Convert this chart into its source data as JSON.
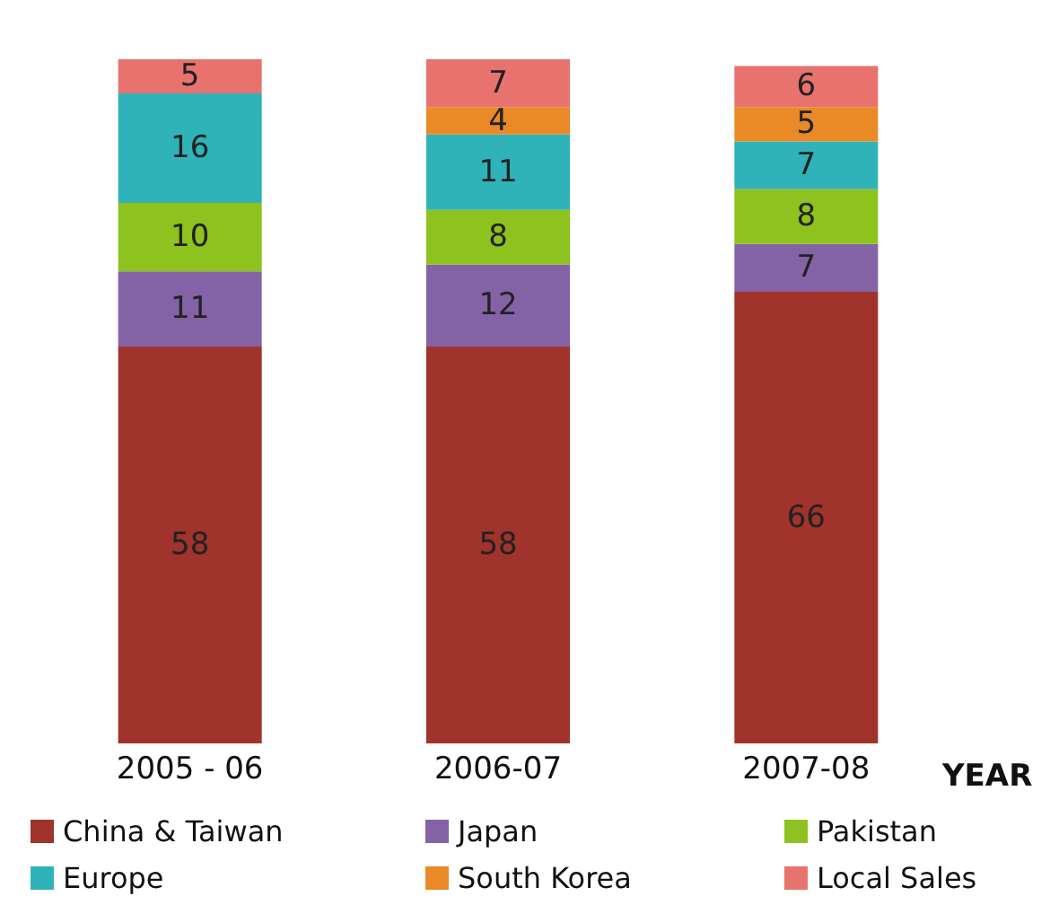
{
  "chart_data": {
    "type": "bar",
    "stacked": true,
    "data_labels": true,
    "legend": "bottom",
    "xlabel": "YEAR",
    "categories": [
      "2005 - 06",
      "2006-07",
      "2007-08"
    ],
    "series": [
      {
        "name": "China & Taiwan",
        "color": "#a0332b",
        "values": [
          58,
          58,
          66
        ]
      },
      {
        "name": "Japan",
        "color": "#8462a6",
        "values": [
          11,
          12,
          7
        ]
      },
      {
        "name": "Pakistan",
        "color": "#8dc21f",
        "values": [
          10,
          8,
          8
        ]
      },
      {
        "name": "Europe",
        "color": "#2fb3b8",
        "values": [
          16,
          11,
          7
        ]
      },
      {
        "name": "South Korea",
        "color": "#e98a26",
        "values": [
          null,
          4,
          5
        ]
      },
      {
        "name": "Local Sales",
        "color": "#e8736e",
        "values": [
          5,
          7,
          6
        ]
      }
    ]
  }
}
